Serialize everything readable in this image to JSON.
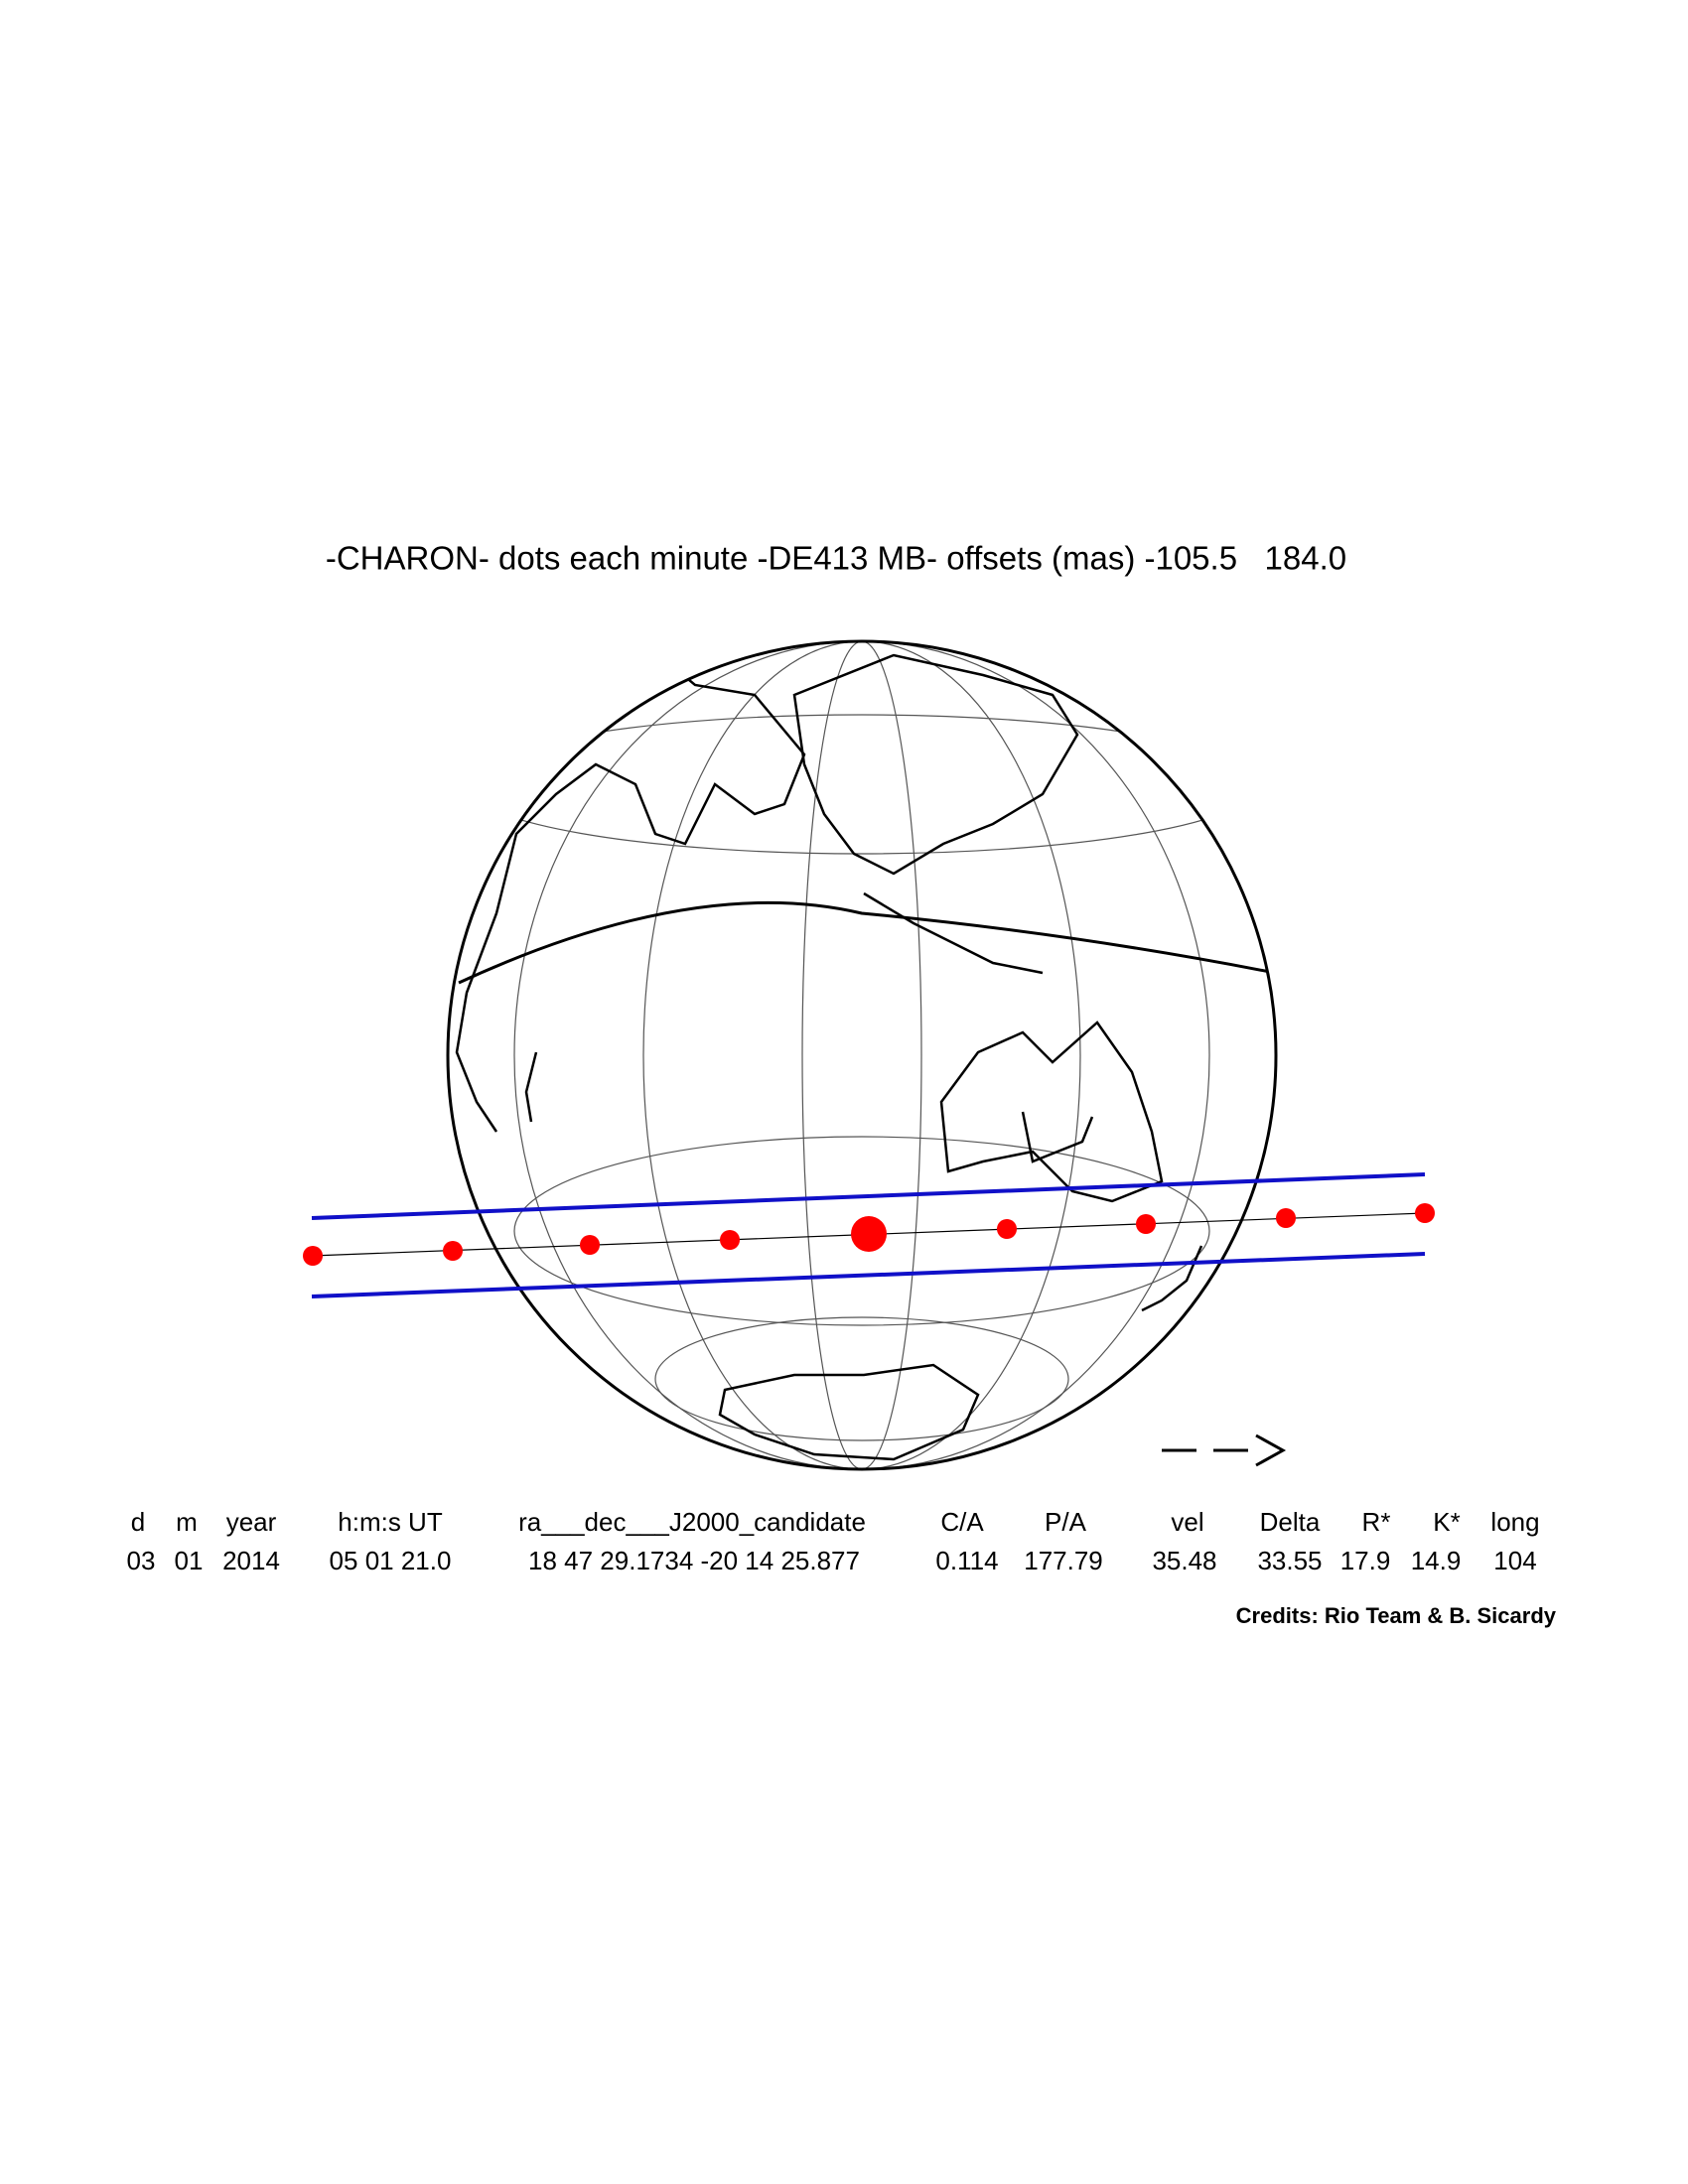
{
  "header": {
    "title": "-CHARON- dots each minute -DE413 MB- offsets (mas) -105.5   184.0"
  },
  "table": {
    "columns": [
      "d",
      "m",
      "year",
      "h:m:s UT",
      "ra___dec___J2000_candidate",
      "C/A",
      "P/A",
      "vel",
      "Delta",
      "R*",
      "K*",
      "long"
    ],
    "rows": [
      [
        "03",
        "01",
        "2014",
        "05 01 21.0",
        "18 47 29.1734 -20 14 25.877",
        "0.114",
        "177.79",
        "35.48",
        "33.55",
        "17.9",
        "14.9",
        "104"
      ]
    ]
  },
  "credits": "Credits: Rio Team & B. Sicardy"
}
